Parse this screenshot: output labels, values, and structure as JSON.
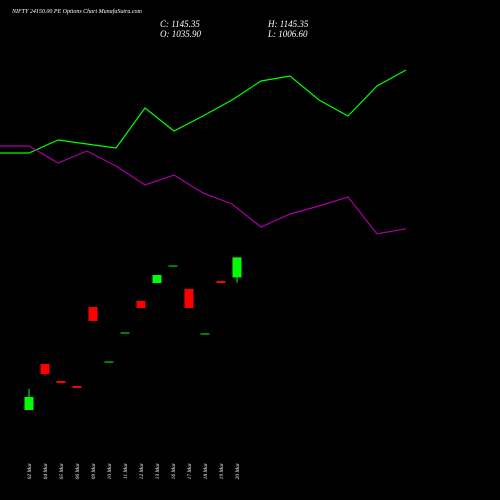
{
  "chart_data": {
    "type": "candlestick",
    "title": "NIFTY 24150.00 PE Options Chart MunafaSutra.com",
    "ohlc_text": [
      "C: 1145.35",
      "H: 1145.35",
      "O: 1035.90",
      "L: 1006.60"
    ],
    "categories": [
      "02 Mar",
      "04 Mar",
      "05 Mar",
      "06 Mar",
      "09 Mar",
      "10 Mar",
      "11 Mar",
      "12 Mar",
      "13 Mar",
      "16 Mar",
      "17 Mar",
      "18 Mar",
      "19 Mar",
      "20 Mar"
    ],
    "open": [
      312.7,
      563.6,
      470.9,
      443.6,
      874.5,
      571.8,
      730,
      907.3,
      1005.5,
      1095.5,
      972.7,
      724.5,
      1016.4,
      1035.9
    ],
    "high": [
      427.3,
      563.6,
      470.9,
      443.6,
      874.5,
      577.3,
      735.5,
      907.3,
      1049.1,
      1100.9,
      972.7,
      730,
      1016.4,
      1145.35
    ],
    "low": [
      312.7,
      498.2,
      460,
      432.7,
      798.2,
      571.8,
      730,
      869.1,
      1005.5,
      1095.5,
      869.1,
      724.5,
      1005.5,
      1006.6
    ],
    "close": [
      383.6,
      509.1,
      460,
      432.7,
      798.2,
      577.3,
      735.5,
      869.1,
      1049.1,
      1100.9,
      869.1,
      730,
      1005.5,
      1145.35
    ],
    "up_color": "#00ff00",
    "down_color": "#ff0000",
    "lines": [
      {
        "color": "#00ff00",
        "values": [
          1714.5,
          1785.5,
          1763.6,
          1741.8,
          1960,
          1834.5,
          1916.4,
          2003.6,
          2107.3,
          2134.5,
          2003.6,
          1916.4,
          2080,
          2167.3
        ]
      },
      {
        "color": "#aa00aa",
        "values": [
          1752.7,
          1660,
          1725.5,
          1643.6,
          1540,
          1594.5,
          1496.4,
          1436.4,
          1310.9,
          1381.8,
          1425.5,
          1474.5,
          1273.6,
          1300.9
        ]
      }
    ],
    "ylim": [
      40,
      2440
    ]
  }
}
